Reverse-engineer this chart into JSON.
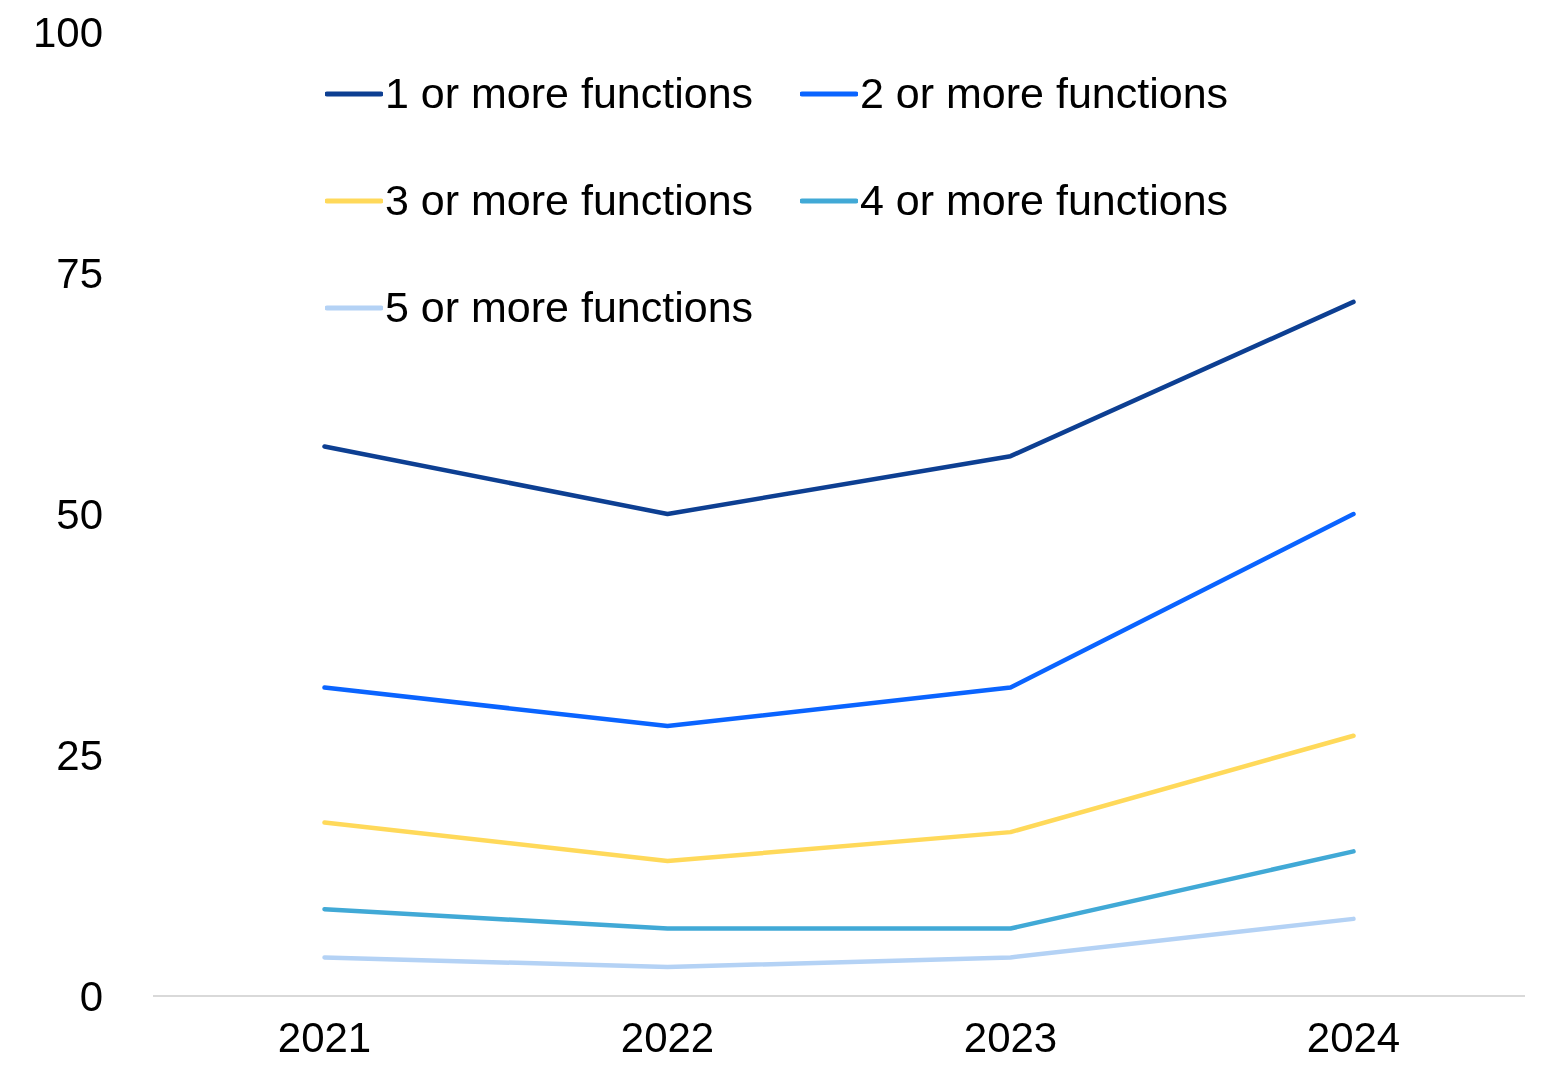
{
  "chart_data": {
    "type": "line",
    "categories": [
      "2021",
      "2022",
      "2023",
      "2024"
    ],
    "series": [
      {
        "name": "1 or more functions",
        "color": "#0d3f92",
        "values": [
          57,
          50,
          56,
          72
        ]
      },
      {
        "name": "2 or more functions",
        "color": "#0a64ff",
        "values": [
          32,
          28,
          32,
          50
        ]
      },
      {
        "name": "3 or more functions",
        "color": "#ffd95a",
        "values": [
          18,
          14,
          17,
          27
        ]
      },
      {
        "name": "4 or more functions",
        "color": "#41a9d6",
        "values": [
          9,
          7,
          7,
          15
        ]
      },
      {
        "name": "5 or more functions",
        "color": "#b4d2f5",
        "values": [
          4,
          3,
          4,
          8
        ]
      }
    ],
    "ylim": [
      0,
      100
    ],
    "yticks": [
      0,
      25,
      50,
      75,
      100
    ],
    "grid": false,
    "legend": "top",
    "marker": "none",
    "line_style": "solid"
  }
}
